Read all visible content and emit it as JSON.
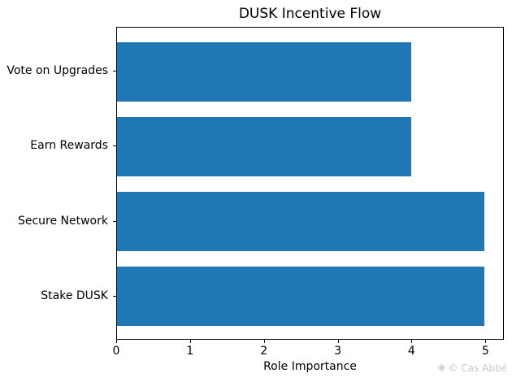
{
  "chart_data": {
    "type": "bar",
    "orientation": "horizontal",
    "title": "DUSK Incentive Flow",
    "categories": [
      "Vote on Upgrades",
      "Earn Rewards",
      "Secure Network",
      "Stake DUSK"
    ],
    "values": [
      4,
      4,
      5,
      5
    ],
    "xlabel": "Role Importance",
    "ylabel": "",
    "x_ticks": [
      0,
      1,
      2,
      3,
      4,
      5
    ],
    "xlim": [
      0,
      5.25
    ],
    "bar_color": "#1f77b4",
    "grid": false,
    "legend": false
  },
  "watermark": {
    "icon": "diamond-gem-icon",
    "icon_glyph": "◈",
    "text": "© Cas Abbé",
    "color": "#c9c9c9"
  }
}
